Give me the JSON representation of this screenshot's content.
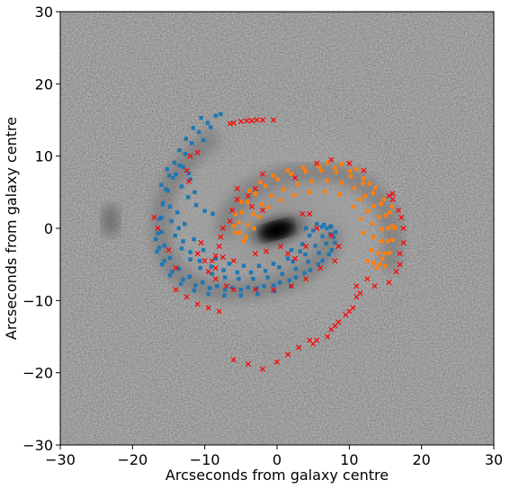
{
  "chart_data": {
    "type": "scatter",
    "xlabel": "Arcseconds from galaxy centre",
    "ylabel": "Arcseconds from galaxy centre",
    "xlim": [
      -30,
      30
    ],
    "ylim": [
      -30,
      30
    ],
    "xticks": [
      -30,
      -20,
      -10,
      0,
      10,
      20,
      30
    ],
    "yticks": [
      -30,
      -20,
      -10,
      0,
      10,
      20,
      30
    ],
    "xtick_labels": [
      "−30",
      "−20",
      "−10",
      "0",
      "10",
      "20",
      "30"
    ],
    "ytick_labels": [
      "−30",
      "−20",
      "−10",
      "0",
      "10",
      "20",
      "30"
    ],
    "grid": false,
    "background": "grayscale galaxy image with bright centre and spiral arms",
    "series": [
      {
        "marker": "square",
        "color": "#1f77b4",
        "points": [
          [
            -8.5,
            15.6
          ],
          [
            -9.6,
            14.6
          ],
          [
            -10.8,
            13.3
          ],
          [
            -11.8,
            11.8
          ],
          [
            -12.7,
            10.3
          ],
          [
            -13.5,
            8.7
          ],
          [
            -14.4,
            7.0
          ],
          [
            -15.1,
            5.2
          ],
          [
            -15.8,
            3.3
          ],
          [
            -16.3,
            1.3
          ],
          [
            -16.5,
            -0.7
          ],
          [
            -16.3,
            -2.7
          ],
          [
            -15.6,
            -4.5
          ],
          [
            -14.5,
            -6.0
          ],
          [
            -13.0,
            -7.1
          ],
          [
            -11.3,
            -7.9
          ],
          [
            -9.3,
            -8.3
          ],
          [
            -7.2,
            -8.5
          ],
          [
            -5.0,
            -8.5
          ],
          [
            -2.8,
            -8.3
          ],
          [
            -0.5,
            -7.9
          ],
          [
            1.7,
            -7.2
          ],
          [
            3.8,
            -6.2
          ],
          [
            5.7,
            -5.0
          ],
          [
            7.2,
            -3.6
          ],
          [
            8.0,
            -2.0
          ],
          [
            8.1,
            -0.5
          ],
          [
            7.4,
            0.3
          ],
          [
            6.2,
            0.2
          ],
          [
            5.0,
            -0.3
          ],
          [
            -10.5,
            15.3
          ],
          [
            -11.6,
            13.9
          ],
          [
            -12.6,
            12.4
          ],
          [
            -13.5,
            10.8
          ],
          [
            -14.2,
            9.1
          ],
          [
            -14.9,
            7.3
          ],
          [
            -15.4,
            5.4
          ],
          [
            -15.8,
            3.5
          ],
          [
            -16.0,
            1.5
          ],
          [
            -16.0,
            -0.5
          ],
          [
            -15.6,
            -2.4
          ],
          [
            -14.8,
            -4.1
          ],
          [
            -13.6,
            -5.6
          ],
          [
            -12.1,
            -6.7
          ],
          [
            -10.3,
            -7.5
          ],
          [
            -8.3,
            -8.0
          ],
          [
            -6.2,
            -8.2
          ],
          [
            -4.0,
            -8.2
          ],
          [
            -1.8,
            -8.0
          ],
          [
            0.4,
            -7.5
          ],
          [
            2.6,
            -6.8
          ],
          [
            4.6,
            -5.8
          ],
          [
            6.3,
            -4.5
          ],
          [
            7.6,
            -3.0
          ],
          [
            -14.0,
            7.5
          ],
          [
            -13.2,
            5.8
          ],
          [
            -12.3,
            4.3
          ],
          [
            -11.2,
            3.2
          ],
          [
            -10.0,
            2.4
          ],
          [
            -8.9,
            2.0
          ],
          [
            -14.8,
            3.0
          ],
          [
            -14.6,
            1.0
          ],
          [
            -14.1,
            -1.0
          ],
          [
            -13.2,
            -2.8
          ],
          [
            -12.0,
            -4.3
          ],
          [
            -10.6,
            -5.5
          ],
          [
            -9.0,
            -6.3
          ],
          [
            -7.2,
            -6.8
          ],
          [
            -5.3,
            -7.0
          ],
          [
            -3.3,
            -7.0
          ],
          [
            -1.3,
            -6.8
          ],
          [
            0.7,
            -6.3
          ],
          [
            2.6,
            -5.6
          ],
          [
            4.3,
            -4.6
          ],
          [
            5.8,
            -3.4
          ],
          [
            6.8,
            -2.1
          ],
          [
            7.4,
            -0.8
          ],
          [
            7.5,
            0.2
          ],
          [
            -13.6,
            0.0
          ],
          [
            -13.0,
            -1.8
          ],
          [
            -12.0,
            -3.3
          ],
          [
            -10.7,
            -4.5
          ],
          [
            -9.1,
            -5.3
          ],
          [
            -7.4,
            -5.8
          ],
          [
            -5.5,
            -6.1
          ],
          [
            -3.6,
            -6.1
          ],
          [
            -1.6,
            -5.9
          ],
          [
            0.3,
            -5.4
          ],
          [
            2.2,
            -4.6
          ],
          [
            3.9,
            -3.6
          ],
          [
            5.3,
            -2.4
          ],
          [
            6.3,
            -1.1
          ],
          [
            6.9,
            0.0
          ],
          [
            4.5,
            -1.0
          ],
          [
            3.5,
            -2.2
          ],
          [
            2.0,
            -3.0
          ],
          [
            -16.8,
            -1.5
          ],
          [
            -16.6,
            -3.2
          ],
          [
            -15.9,
            -5.0
          ],
          [
            -14.8,
            -6.5
          ],
          [
            -13.3,
            -7.7
          ],
          [
            -11.5,
            -8.6
          ],
          [
            -9.5,
            -9.1
          ],
          [
            -7.3,
            -9.3
          ],
          [
            -5.0,
            -9.3
          ],
          [
            -2.7,
            -9.1
          ],
          [
            -0.4,
            -8.7
          ],
          [
            1.9,
            -8.0
          ],
          [
            -13.0,
            8.5
          ],
          [
            -12.0,
            6.8
          ],
          [
            -11.4,
            5.0
          ],
          [
            -15.2,
            8.2
          ],
          [
            -16.0,
            6.0
          ],
          [
            -13.8,
            2.2
          ],
          [
            -12.8,
            0.6
          ],
          [
            -11.5,
            -1.5
          ],
          [
            -10.2,
            -3.0
          ],
          [
            -8.5,
            -4.2
          ],
          [
            -6.6,
            -4.9
          ],
          [
            -4.6,
            -5.2
          ],
          [
            -2.5,
            -5.2
          ],
          [
            -0.5,
            -4.9
          ],
          [
            1.5,
            -4.2
          ],
          [
            3.2,
            -3.2
          ],
          [
            6.5,
            0.5
          ],
          [
            7.8,
            -1.2
          ],
          [
            4.0,
            0.0
          ],
          [
            5.5,
            0.6
          ],
          [
            -9.2,
            14.0
          ],
          [
            -10.2,
            12.2
          ],
          [
            -7.8,
            15.8
          ],
          [
            -12.2,
            7.6
          ]
        ]
      },
      {
        "marker": "square",
        "color": "#ff7f0e",
        "points": [
          [
            -5.2,
            -0.6
          ],
          [
            -5.3,
            0.8
          ],
          [
            -4.9,
            2.2
          ],
          [
            -4.1,
            3.6
          ],
          [
            -3.0,
            4.8
          ],
          [
            -1.6,
            5.9
          ],
          [
            0.1,
            6.8
          ],
          [
            2.0,
            7.5
          ],
          [
            4.0,
            7.9
          ],
          [
            6.1,
            8.0
          ],
          [
            8.2,
            7.8
          ],
          [
            10.2,
            7.2
          ],
          [
            11.9,
            6.2
          ],
          [
            13.3,
            4.9
          ],
          [
            14.4,
            3.4
          ],
          [
            15.1,
            1.8
          ],
          [
            15.4,
            0.0
          ],
          [
            15.3,
            -1.8
          ],
          [
            14.9,
            -3.5
          ],
          [
            14.2,
            -5.0
          ],
          [
            -4.3,
            -1.2
          ],
          [
            -4.0,
            0.5
          ],
          [
            -3.3,
            2.0
          ],
          [
            -2.2,
            3.3
          ],
          [
            -0.8,
            4.5
          ],
          [
            0.9,
            5.4
          ],
          [
            2.8,
            6.1
          ],
          [
            4.8,
            6.5
          ],
          [
            6.9,
            6.6
          ],
          [
            8.9,
            6.3
          ],
          [
            10.7,
            5.6
          ],
          [
            12.2,
            4.5
          ],
          [
            13.4,
            3.1
          ],
          [
            14.1,
            1.6
          ],
          [
            14.5,
            -0.1
          ],
          [
            14.4,
            -1.8
          ],
          [
            14.0,
            -3.4
          ],
          [
            13.3,
            -4.8
          ],
          [
            -6.0,
            0.3
          ],
          [
            -5.8,
            2.0
          ],
          [
            -5.0,
            3.7
          ],
          [
            -3.8,
            5.2
          ],
          [
            -2.3,
            6.4
          ],
          [
            -0.5,
            7.3
          ],
          [
            1.5,
            8.0
          ],
          [
            3.6,
            8.4
          ],
          [
            5.8,
            8.6
          ],
          [
            8.0,
            8.4
          ],
          [
            10.1,
            7.9
          ],
          [
            12.0,
            6.9
          ],
          [
            13.6,
            5.6
          ],
          [
            14.8,
            4.0
          ],
          [
            15.6,
            2.2
          ],
          [
            16.0,
            0.3
          ],
          [
            16.0,
            -1.6
          ],
          [
            15.6,
            -3.4
          ],
          [
            15.0,
            -5.2
          ],
          [
            11.5,
            4.0
          ],
          [
            12.6,
            2.4
          ],
          [
            13.2,
            0.6
          ],
          [
            13.3,
            -1.2
          ],
          [
            13.0,
            -3.0
          ],
          [
            12.5,
            -4.5
          ],
          [
            10.5,
            3.0
          ],
          [
            11.6,
            1.3
          ],
          [
            12.0,
            -0.6
          ],
          [
            -3.2,
            0.0
          ],
          [
            -2.5,
            1.6
          ],
          [
            -1.2,
            2.9
          ],
          [
            0.5,
            3.9
          ],
          [
            2.4,
            4.6
          ],
          [
            4.5,
            5.0
          ],
          [
            6.6,
            5.1
          ],
          [
            8.6,
            4.7
          ],
          [
            -4.6,
            -1.8
          ],
          [
            -5.8,
            -0.6
          ],
          [
            16.3,
            0.0
          ],
          [
            15.9,
            3.0
          ],
          [
            11.0,
            8.2
          ],
          [
            9.0,
            8.9
          ],
          [
            7.0,
            9.1
          ],
          [
            13.8,
            -5.5
          ],
          [
            14.6,
            -4.2
          ],
          [
            12.8,
            6.2
          ]
        ]
      },
      {
        "marker": "x",
        "color": "#ff0000",
        "points": [
          [
            -6.5,
            14.5
          ],
          [
            -5.0,
            14.8
          ],
          [
            -3.5,
            14.9
          ],
          [
            -2.0,
            15.0
          ],
          [
            -0.5,
            15.0
          ],
          [
            -6.0,
            14.6
          ],
          [
            -4.2,
            14.9
          ],
          [
            -2.8,
            15.0
          ],
          [
            -11.0,
            10.5
          ],
          [
            -12.0,
            10.0
          ],
          [
            -12.5,
            8.0
          ],
          [
            -12.2,
            6.5
          ],
          [
            -5.5,
            4.0
          ],
          [
            -6.2,
            2.5
          ],
          [
            -5.5,
            5.5
          ],
          [
            -6.5,
            1.0
          ],
          [
            -7.5,
            0.0
          ],
          [
            -7.8,
            -1.2
          ],
          [
            -8.0,
            -2.5
          ],
          [
            -8.5,
            -3.8
          ],
          [
            -9.0,
            -4.5
          ],
          [
            -7.5,
            -4.0
          ],
          [
            -6.0,
            -4.5
          ],
          [
            -3.0,
            -3.5
          ],
          [
            -1.5,
            -3.2
          ],
          [
            0.5,
            -2.5
          ],
          [
            1.5,
            -3.5
          ],
          [
            2.5,
            -4.2
          ],
          [
            4.0,
            -2.5
          ],
          [
            -10.5,
            -2.0
          ],
          [
            -11.0,
            -3.5
          ],
          [
            -10.0,
            -4.5
          ],
          [
            -9.5,
            -6.0
          ],
          [
            -8.5,
            -7.0
          ],
          [
            -7.0,
            -8.0
          ],
          [
            -6.0,
            -8.5
          ],
          [
            -3.0,
            -8.5
          ],
          [
            -0.5,
            -8.5
          ],
          [
            2.0,
            -8.0
          ],
          [
            4.0,
            -7.0
          ],
          [
            6.0,
            -5.5
          ],
          [
            8.0,
            -4.5
          ],
          [
            8.5,
            -2.5
          ],
          [
            7.5,
            -1.0
          ],
          [
            3.5,
            2.0
          ],
          [
            4.5,
            2.0
          ],
          [
            5.5,
            0.0
          ],
          [
            -14.0,
            -8.5
          ],
          [
            -12.5,
            -9.5
          ],
          [
            -11.0,
            -10.5
          ],
          [
            -9.5,
            -11.0
          ],
          [
            -8.0,
            -11.5
          ],
          [
            -16.5,
            0.0
          ],
          [
            -15.0,
            -3.0
          ],
          [
            -14.0,
            -5.5
          ],
          [
            -17.0,
            1.5
          ],
          [
            11.0,
            -8.0
          ],
          [
            11.5,
            -9.0
          ],
          [
            11.0,
            -9.5
          ],
          [
            10.5,
            -11.0
          ],
          [
            10.0,
            -11.5
          ],
          [
            9.5,
            -12.0
          ],
          [
            8.5,
            -13.0
          ],
          [
            8.0,
            -13.5
          ],
          [
            7.5,
            -14.0
          ],
          [
            7.0,
            -15.0
          ],
          [
            5.5,
            -15.5
          ],
          [
            5.0,
            -16.0
          ],
          [
            4.5,
            -15.5
          ],
          [
            3.0,
            -16.5
          ],
          [
            1.5,
            -17.5
          ],
          [
            0.0,
            -18.5
          ],
          [
            -2.0,
            -19.5
          ],
          [
            -4.0,
            -18.8
          ],
          [
            -6.0,
            -18.2
          ],
          [
            15.5,
            -7.5
          ],
          [
            16.5,
            -6.0
          ],
          [
            17.0,
            -5.0
          ],
          [
            17.0,
            -3.5
          ],
          [
            17.5,
            -2.0
          ],
          [
            17.5,
            0.0
          ],
          [
            17.2,
            1.5
          ],
          [
            16.8,
            2.5
          ],
          [
            16.0,
            4.0
          ],
          [
            15.5,
            4.5
          ],
          [
            16.0,
            4.8
          ],
          [
            12.0,
            8.0
          ],
          [
            10.0,
            9.0
          ],
          [
            7.5,
            9.5
          ],
          [
            5.5,
            9.0
          ],
          [
            2.5,
            7.0
          ],
          [
            -2.0,
            7.5
          ],
          [
            -3.0,
            5.5
          ],
          [
            -4.0,
            4.5
          ],
          [
            12.5,
            -7.0
          ],
          [
            13.5,
            -8.0
          ],
          [
            -2.0,
            2.5
          ],
          [
            -3.5,
            3.0
          ],
          [
            -8.5,
            -5.5
          ]
        ]
      }
    ]
  }
}
